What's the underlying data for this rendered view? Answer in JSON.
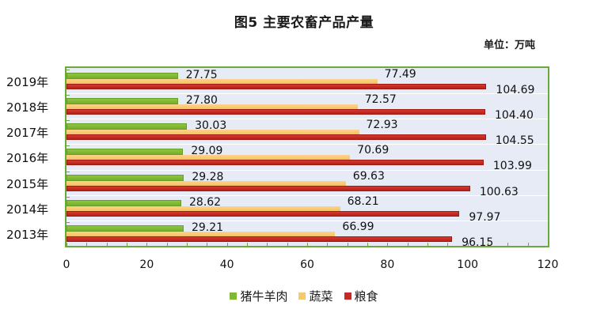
{
  "chart_data": {
    "type": "bar",
    "orientation": "horizontal",
    "title": "图5 主要农畜产品产量",
    "unit_label": "单位：万吨",
    "categories": [
      "2019年",
      "2018年",
      "2017年",
      "2016年",
      "2015年",
      "2014年",
      "2013年"
    ],
    "series": [
      {
        "name": "猪牛羊肉",
        "color": "#7fb834",
        "values": [
          27.75,
          27.8,
          30.03,
          29.09,
          29.28,
          28.62,
          29.21
        ],
        "labels": [
          "27.75",
          "27.80",
          "30.03",
          "29.09",
          "29.28",
          "28.62",
          "29.21"
        ]
      },
      {
        "name": "蔬菜",
        "color": "#f8c870",
        "values": [
          77.49,
          72.57,
          72.93,
          70.69,
          69.63,
          68.21,
          66.99
        ],
        "labels": [
          "77.49",
          "72.57",
          "72.93",
          "70.69",
          "69.63",
          "68.21",
          "66.99"
        ]
      },
      {
        "name": "粮食",
        "color": "#c62a22",
        "values": [
          104.69,
          104.4,
          104.55,
          103.99,
          100.63,
          97.97,
          96.15
        ],
        "labels": [
          "104.69",
          "104.40",
          "104.55",
          "103.99",
          "100.63",
          "97.97",
          "96.15"
        ]
      }
    ],
    "xlabel": "",
    "ylabel": "",
    "xlim": [
      0,
      120
    ],
    "xticks": [
      "0",
      "20",
      "40",
      "60",
      "80",
      "100",
      "120"
    ],
    "grid": false,
    "legend_position": "bottom",
    "plot_background": "#e6ebf5",
    "plot_border": "#6aaa3a"
  }
}
